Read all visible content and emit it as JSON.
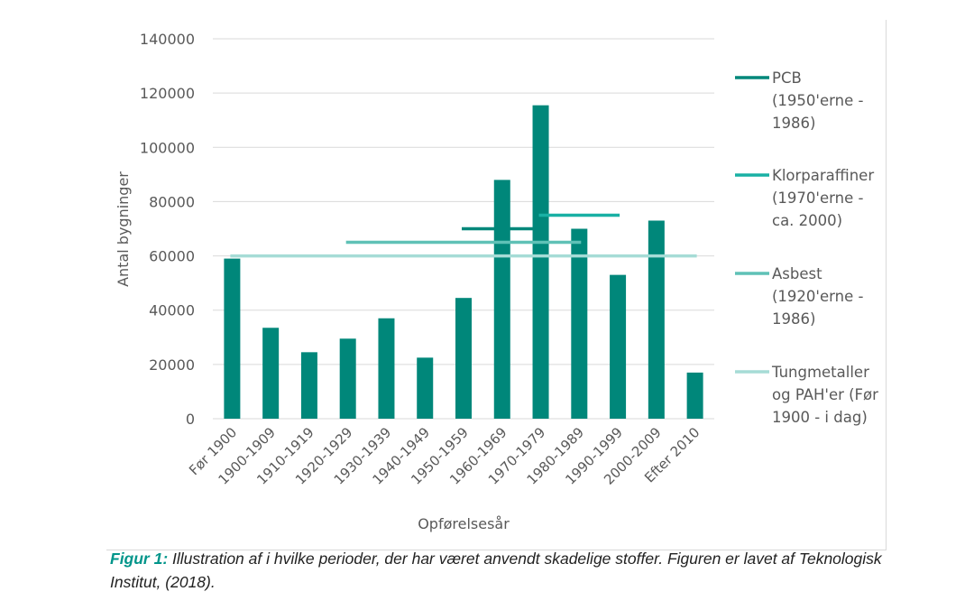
{
  "chart_data": {
    "type": "bar",
    "xlabel": "Opførelsesår",
    "ylabel": "Antal bygninger",
    "ylim": [
      0,
      140000
    ],
    "yticks": [
      "0",
      "20000",
      "40000",
      "60000",
      "80000",
      "100000",
      "120000",
      "140000"
    ],
    "categories": [
      "Før 1900",
      "1900-1909",
      "1910-1919",
      "1920-1929",
      "1930-1939",
      "1940-1949",
      "1950-1959",
      "1960-1969",
      "1970-1979",
      "1980-1989",
      "1990-1999",
      "2000-2009",
      "Efter 2010"
    ],
    "values": [
      59000,
      33500,
      24500,
      29500,
      37000,
      22500,
      44500,
      88000,
      115500,
      70000,
      53000,
      73000,
      17000
    ],
    "bar_color": "#00877a",
    "grid": true,
    "legend_position": "right",
    "overlay_lines": [
      {
        "legend": [
          "PCB",
          "(1950'erne -",
          "1986)"
        ],
        "color": "#00877a",
        "start_category": 6,
        "end_category": 8,
        "value": 70000
      },
      {
        "legend": [
          "Klorparaffiner",
          "(1970'erne -",
          "ca. 2000)"
        ],
        "color": "#19b0a4",
        "start_category": 8,
        "end_category": 10,
        "value": 75000
      },
      {
        "legend": [
          "Asbest",
          "(1920'erne -",
          "1986)"
        ],
        "color": "#5fc1b6",
        "start_category": 3,
        "end_category": 9,
        "value": 65000
      },
      {
        "legend": [
          "Tungmetaller",
          "og PAH'er (Før",
          "1900 - i dag)"
        ],
        "color": "#a6dcd6",
        "start_category": 0,
        "end_category": 12,
        "value": 60000
      }
    ]
  },
  "caption": {
    "label": "Figur 1:",
    "text": " Illustration af i hvilke perioder, der har været anvendt skadelige stoffer. Figuren er lavet af Teknologisk Institut, (2018)."
  }
}
